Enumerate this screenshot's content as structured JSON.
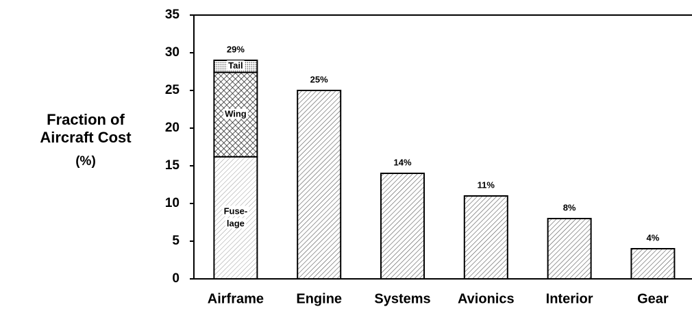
{
  "chart_data": {
    "type": "bar",
    "ylabel": [
      "Fraction of",
      "Aircraft Cost",
      "(%)"
    ],
    "categories": [
      "Airframe",
      "Engine",
      "Systems",
      "Avionics",
      "Interior",
      "Gear"
    ],
    "values": [
      29,
      25,
      14,
      11,
      8,
      4
    ],
    "value_labels": [
      "29%",
      "25%",
      "14%",
      "11%",
      "8%",
      "4%"
    ],
    "color": "#000000",
    "segments": [
      {
        "label": [
          "Fuse-",
          "lage"
        ],
        "value": 16.2
      },
      {
        "label": [
          "Wing"
        ],
        "value": 11.2
      },
      {
        "label": [
          "Tail"
        ],
        "value": 1.6
      }
    ],
    "ylim": [
      0,
      35
    ],
    "yticks": [
      0,
      5,
      10,
      15,
      20,
      25,
      30,
      35
    ]
  }
}
